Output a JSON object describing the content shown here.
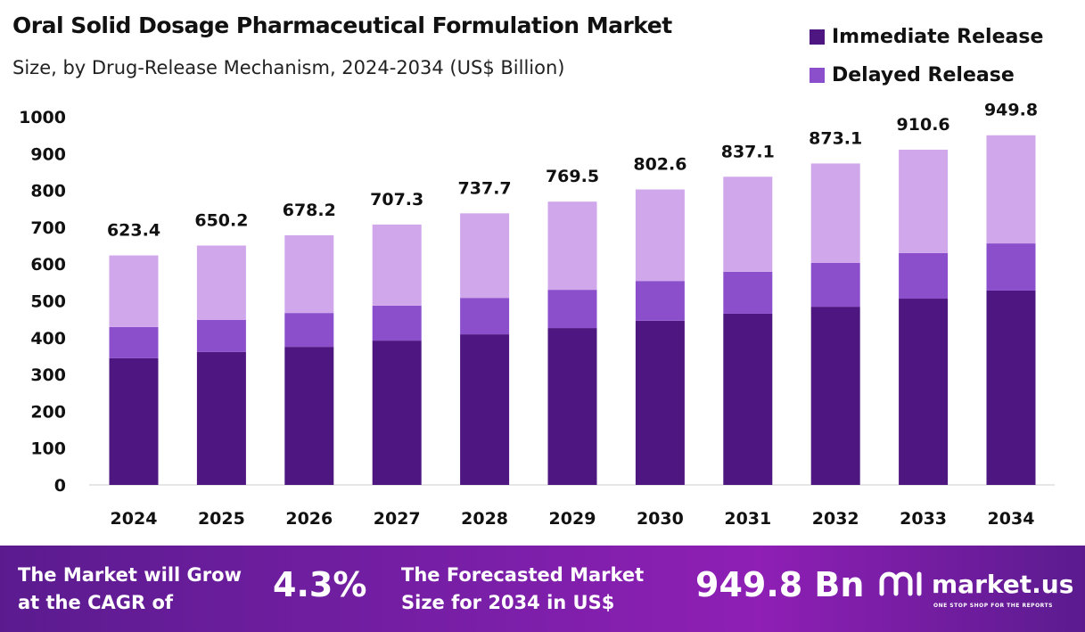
{
  "chart_data": {
    "type": "bar",
    "stacked": true,
    "title": "Oral Solid Dosage Pharmaceutical Formulation Market",
    "subtitle": "Size, by Drug-Release Mechanism, 2024-2034 (US$ Billion)",
    "categories": [
      "2024",
      "2025",
      "2026",
      "2027",
      "2028",
      "2029",
      "2030",
      "2031",
      "2032",
      "2033",
      "2034"
    ],
    "series": [
      {
        "name": "Immediate Release",
        "color": "#4e1680",
        "values": [
          344,
          361,
          375,
          392,
          409,
          426,
          446,
          465,
          484,
          506,
          528
        ]
      },
      {
        "name": "Delayed Release",
        "color": "#8b4fcc",
        "values": [
          85,
          87,
          92,
          95,
          99,
          104,
          108,
          114,
          119,
          124,
          128
        ]
      },
      {
        "color": "#d1a7ec",
        "values": [
          194.4,
          202.2,
          211.2,
          220.3,
          229.7,
          239.5,
          248.6,
          258.1,
          270.1,
          280.6,
          293.8
        ]
      }
    ],
    "totals": [
      "623.4",
      "650.2",
      "678.2",
      "707.3",
      "737.7",
      "769.5",
      "802.6",
      "837.1",
      "873.1",
      "910.6",
      "949.8"
    ],
    "ylim": [
      0,
      1000
    ],
    "yticks": [
      "0",
      "100",
      "200",
      "300",
      "400",
      "500",
      "600",
      "700",
      "800",
      "900",
      "1000"
    ],
    "grid": false,
    "legend_position": "top-right"
  },
  "footer": {
    "cagr_label_1": "The Market will Grow",
    "cagr_label_2": "at the CAGR of",
    "cagr_value": "4.3%",
    "forecast_label_1": "The Forecasted Market",
    "forecast_label_2": "Size for 2034 in US$",
    "forecast_value": "949.8 Bn",
    "brand": "market.us",
    "tagline": "ONE STOP SHOP FOR THE REPORTS"
  }
}
